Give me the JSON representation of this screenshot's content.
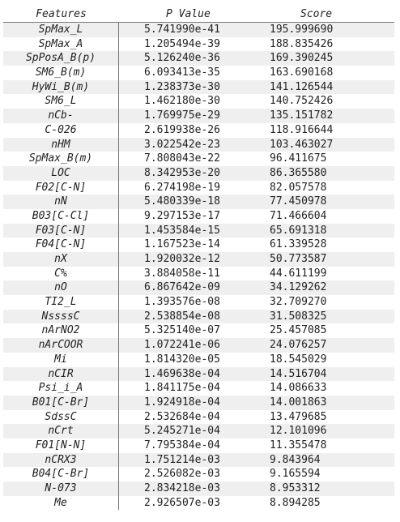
{
  "headers": {
    "feature": "Features",
    "p_value": "P Value",
    "score": "Score"
  },
  "rows": [
    {
      "feature": "SpMax_L",
      "p_value": "5.741990e-41",
      "score": "195.999690"
    },
    {
      "feature": "SpMax_A",
      "p_value": "1.205494e-39",
      "score": "188.835426"
    },
    {
      "feature": "SpPosA_B(p)",
      "p_value": "5.126240e-36",
      "score": "169.390245"
    },
    {
      "feature": "SM6_B(m)",
      "p_value": "6.093413e-35",
      "score": "163.690168"
    },
    {
      "feature": "HyWi_B(m)",
      "p_value": "1.238373e-30",
      "score": "141.126544"
    },
    {
      "feature": "SM6_L",
      "p_value": "1.462180e-30",
      "score": "140.752426"
    },
    {
      "feature": "nCb-",
      "p_value": "1.769975e-29",
      "score": "135.151782"
    },
    {
      "feature": "C-026",
      "p_value": "2.619938e-26",
      "score": "118.916644"
    },
    {
      "feature": "nHM",
      "p_value": "3.022542e-23",
      "score": "103.463027"
    },
    {
      "feature": "SpMax_B(m)",
      "p_value": "7.808043e-22",
      "score": "96.411675"
    },
    {
      "feature": "LOC",
      "p_value": "8.342953e-20",
      "score": "86.365580"
    },
    {
      "feature": "F02[C-N]",
      "p_value": "6.274198e-19",
      "score": "82.057578"
    },
    {
      "feature": "nN",
      "p_value": "5.480339e-18",
      "score": "77.450978"
    },
    {
      "feature": "B03[C-Cl]",
      "p_value": "9.297153e-17",
      "score": "71.466604"
    },
    {
      "feature": "F03[C-N]",
      "p_value": "1.453584e-15",
      "score": "65.691318"
    },
    {
      "feature": "F04[C-N]",
      "p_value": "1.167523e-14",
      "score": "61.339528"
    },
    {
      "feature": "nX",
      "p_value": "1.920032e-12",
      "score": "50.773587"
    },
    {
      "feature": "C%",
      "p_value": "3.884058e-11",
      "score": "44.611199"
    },
    {
      "feature": "nO",
      "p_value": "6.867642e-09",
      "score": "34.129262"
    },
    {
      "feature": "TI2_L",
      "p_value": "1.393576e-08",
      "score": "32.709270"
    },
    {
      "feature": "NssssC",
      "p_value": "2.538854e-08",
      "score": "31.508325"
    },
    {
      "feature": "nArNO2",
      "p_value": "5.325140e-07",
      "score": "25.457085"
    },
    {
      "feature": "nArCOOR",
      "p_value": "1.072241e-06",
      "score": "24.076257"
    },
    {
      "feature": "Mi",
      "p_value": "1.814320e-05",
      "score": "18.545029"
    },
    {
      "feature": "nCIR",
      "p_value": "1.469638e-04",
      "score": "14.516704"
    },
    {
      "feature": "Psi_i_A",
      "p_value": "1.841175e-04",
      "score": "14.086633"
    },
    {
      "feature": "B01[C-Br]",
      "p_value": "1.924918e-04",
      "score": "14.001863"
    },
    {
      "feature": "SdssC",
      "p_value": "2.532684e-04",
      "score": "13.479685"
    },
    {
      "feature": "nCrt",
      "p_value": "5.245271e-04",
      "score": "12.101096"
    },
    {
      "feature": "F01[N-N]",
      "p_value": "7.795384e-04",
      "score": "11.355478"
    },
    {
      "feature": "nCRX3",
      "p_value": "1.751214e-03",
      "score": "9.843964"
    },
    {
      "feature": "B04[C-Br]",
      "p_value": "2.526082e-03",
      "score": "9.165594"
    },
    {
      "feature": "N-073",
      "p_value": "2.834218e-03",
      "score": "8.953312"
    },
    {
      "feature": "Me",
      "p_value": "2.926507e-03",
      "score": "8.894285"
    }
  ]
}
